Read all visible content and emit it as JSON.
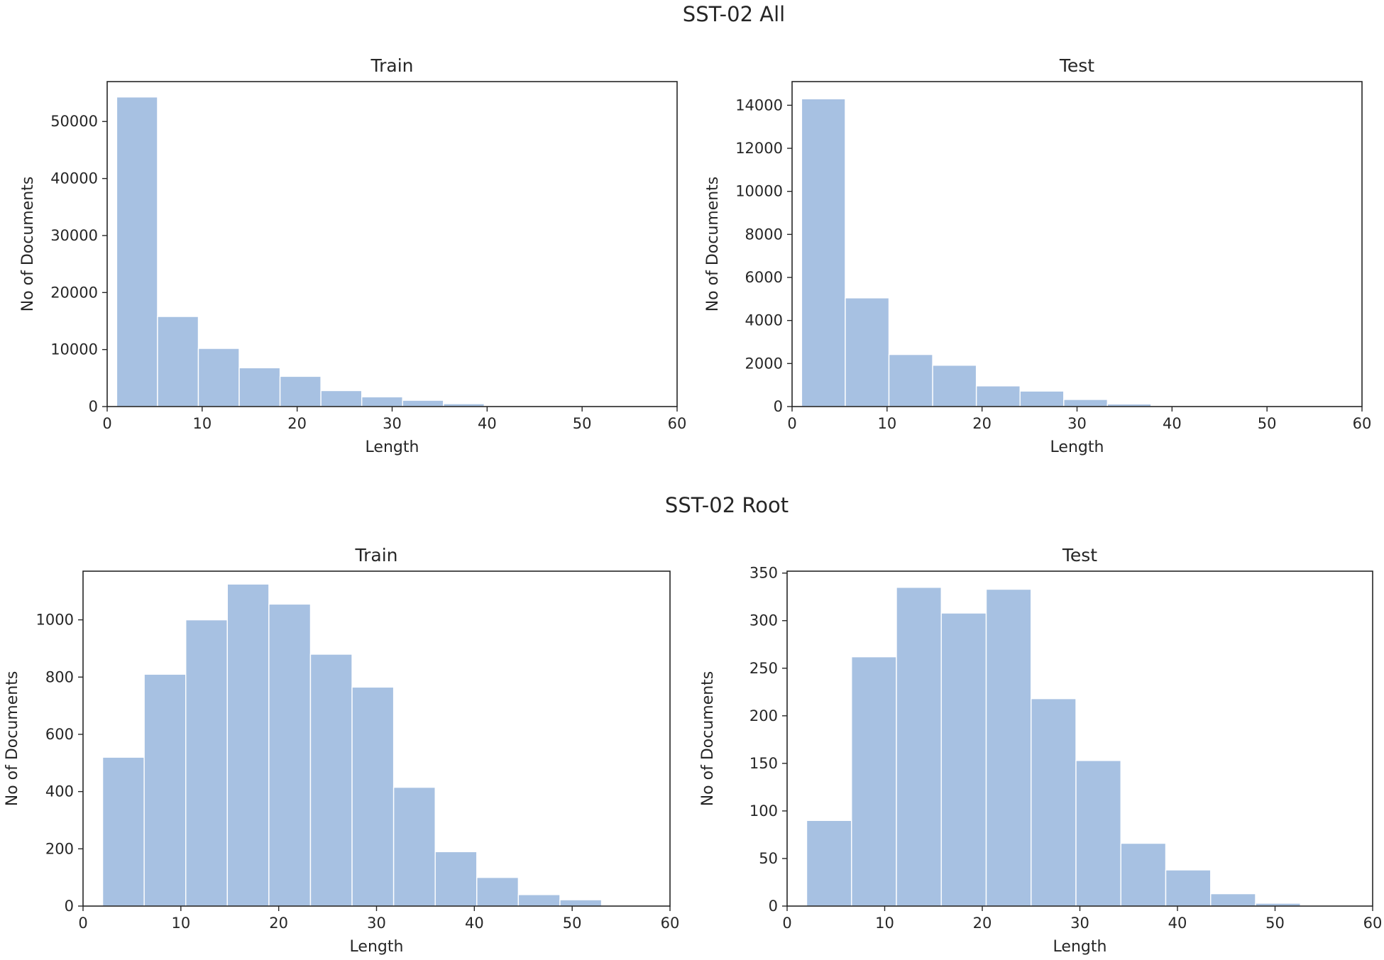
{
  "figure": {
    "top_title": "SST-02 All",
    "bottom_title": "SST-02 Root"
  },
  "colors": {
    "bar_fill": "#a7c1e2",
    "bar_edge": "#ffffff",
    "axis": "#262626"
  },
  "chart_data": [
    {
      "type": "bar",
      "group": "SST-02 All",
      "title": "Train",
      "xlabel": "Length",
      "ylabel": "No of Documents",
      "xlim": [
        0,
        60
      ],
      "ylim": [
        0,
        57000
      ],
      "xticks": [
        0,
        10,
        20,
        30,
        40,
        50,
        60
      ],
      "yticks": [
        0,
        10000,
        20000,
        30000,
        40000,
        50000
      ],
      "bin_edges": [
        1,
        5.3,
        9.6,
        13.9,
        18.2,
        22.5,
        26.8,
        31.1,
        35.4,
        39.7,
        44,
        48.3,
        52.6,
        56.9
      ],
      "values": [
        54300,
        15800,
        10200,
        6800,
        5300,
        2800,
        1700,
        1100,
        500,
        150,
        60,
        20,
        5
      ]
    },
    {
      "type": "bar",
      "group": "SST-02 All",
      "title": "Test",
      "xlabel": "Length",
      "ylabel": "No of Documents",
      "xlim": [
        0,
        60
      ],
      "ylim": [
        0,
        15100
      ],
      "xticks": [
        0,
        10,
        20,
        30,
        40,
        50,
        60
      ],
      "yticks": [
        0,
        2000,
        4000,
        6000,
        8000,
        10000,
        12000,
        14000
      ],
      "bin_edges": [
        1,
        5.6,
        10.2,
        14.8,
        19.4,
        24,
        28.6,
        33.2,
        37.8,
        42.4,
        47,
        51.6,
        56.2
      ],
      "values": [
        14300,
        5050,
        2420,
        1920,
        960,
        720,
        330,
        120,
        40,
        10,
        3,
        1
      ]
    },
    {
      "type": "bar",
      "group": "SST-02 Root",
      "title": "Train",
      "xlabel": "Length",
      "ylabel": "No of Documents",
      "xlim": [
        0,
        60
      ],
      "ylim": [
        0,
        1170
      ],
      "xticks": [
        0,
        10,
        20,
        30,
        40,
        50,
        60
      ],
      "yticks": [
        0,
        200,
        400,
        600,
        800,
        1000
      ],
      "bin_edges": [
        2,
        6.25,
        10.5,
        14.75,
        19,
        23.25,
        27.5,
        31.75,
        36,
        40.25,
        44.5,
        48.75,
        53
      ],
      "values": [
        520,
        810,
        1000,
        1125,
        1055,
        880,
        765,
        415,
        190,
        100,
        40,
        22
      ]
    },
    {
      "type": "bar",
      "group": "SST-02 Root",
      "title": "Test",
      "xlabel": "Length",
      "ylabel": "No of Documents",
      "xlim": [
        0,
        60
      ],
      "ylim": [
        0,
        352
      ],
      "xticks": [
        0,
        10,
        20,
        30,
        40,
        50,
        60
      ],
      "yticks": [
        0,
        50,
        100,
        150,
        200,
        250,
        300,
        350
      ],
      "bin_edges": [
        2,
        6.6,
        11.2,
        15.8,
        20.4,
        25,
        29.6,
        34.2,
        38.8,
        43.4,
        48,
        52.6,
        57.2
      ],
      "values": [
        90,
        262,
        335,
        308,
        333,
        218,
        153,
        66,
        38,
        13,
        3,
        1
      ]
    }
  ]
}
